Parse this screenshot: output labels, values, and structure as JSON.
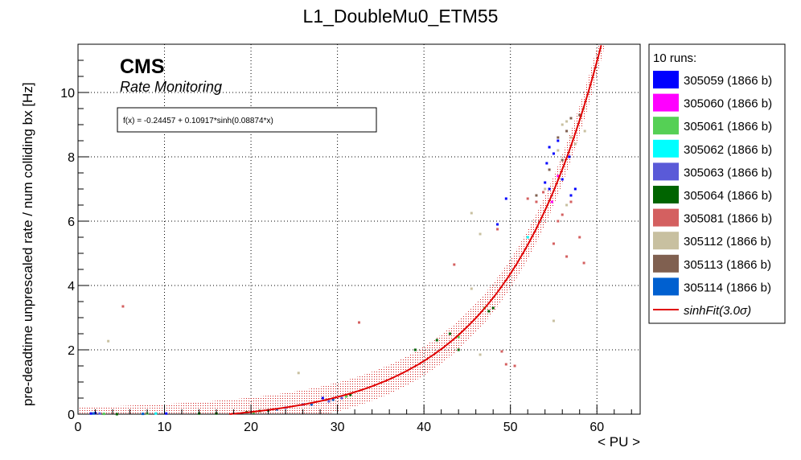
{
  "chart_data": {
    "type": "scatter",
    "title": "L1_DoubleMu0_ETM55",
    "xlabel": "< PU >",
    "ylabel": "pre-deadtime unprescaled rate / num colliding bx [Hz]",
    "xlim": [
      0,
      65
    ],
    "ylim": [
      0,
      11.5
    ],
    "x_ticks": [
      0,
      10,
      20,
      30,
      40,
      50,
      60
    ],
    "y_ticks": [
      0,
      2,
      4,
      6,
      8,
      10
    ],
    "x_tick_labels": [
      "0",
      "10",
      "20",
      "30",
      "40",
      "50",
      "60"
    ],
    "y_tick_labels": [
      "0",
      "2",
      "4",
      "6",
      "8",
      "10"
    ],
    "grid": true,
    "brand": "CMS",
    "subbrand": "Rate Monitoring",
    "fit_formula": "f(x) = -0.24457 + 0.10917*sinh(0.08874*x)",
    "fit": {
      "a": -0.24457,
      "b": 0.10917,
      "c": 0.08874,
      "band": 0.45,
      "color": "#e00000"
    },
    "legend_header": "10 runs:",
    "legend_position": "right",
    "series": [
      {
        "name": "305059 (1866 b)",
        "color": "#0000ff",
        "points": [
          [
            1.5,
            0.02
          ],
          [
            2,
            0.03
          ],
          [
            10.2,
            0.02
          ],
          [
            28.3,
            0.5
          ],
          [
            49.5,
            6.7
          ],
          [
            48.5,
            5.9
          ],
          [
            54,
            7.2
          ],
          [
            54.5,
            7.0
          ],
          [
            54.2,
            7.8
          ],
          [
            55,
            8.1
          ],
          [
            55.5,
            8.5
          ],
          [
            54.5,
            8.3
          ],
          [
            56,
            7.3
          ],
          [
            57,
            6.8
          ],
          [
            57.5,
            7.0
          ],
          [
            56.8,
            8.0
          ]
        ]
      },
      {
        "name": "305060 (1866 b)",
        "color": "#ff00ff",
        "points": [
          [
            54.8,
            6.6
          ],
          [
            55.5,
            7.4
          ]
        ]
      },
      {
        "name": "305061 (1866 b)",
        "color": "#55d055",
        "points": [
          [
            3,
            0.01
          ],
          [
            8,
            0.02
          ],
          [
            20.3,
            0.05
          ],
          [
            31,
            0.55
          ],
          [
            44,
            2.4
          ],
          [
            47,
            3.3
          ]
        ]
      },
      {
        "name": "305062 (1866 b)",
        "color": "#00ffff",
        "points": [
          [
            9,
            0.02
          ],
          [
            52,
            5.5
          ]
        ]
      },
      {
        "name": "305063 (1866 b)",
        "color": "#5a5ad8",
        "points": [
          [
            2.5,
            0.02
          ],
          [
            24,
            0.2
          ],
          [
            26,
            0.3
          ],
          [
            29,
            0.4
          ],
          [
            30.5,
            0.5
          ]
        ]
      },
      {
        "name": "305064 (1866 b)",
        "color": "#006400",
        "points": [
          [
            4.5,
            0.0
          ],
          [
            14,
            0.02
          ],
          [
            16,
            0.02
          ],
          [
            19.5,
            0.06
          ],
          [
            21,
            0.1
          ],
          [
            22,
            0.12
          ],
          [
            31.5,
            0.6
          ],
          [
            39,
            2.0
          ],
          [
            41.5,
            2.3
          ],
          [
            43,
            2.5
          ],
          [
            44,
            2.0
          ],
          [
            47.5,
            3.2
          ],
          [
            48,
            3.3
          ]
        ]
      },
      {
        "name": "305081 (1866 b)",
        "color": "#d46060",
        "points": [
          [
            5.2,
            3.35
          ],
          [
            32.5,
            2.85
          ],
          [
            43.5,
            4.65
          ],
          [
            49,
            1.95
          ],
          [
            49.5,
            1.55
          ],
          [
            50.5,
            1.5
          ],
          [
            48.5,
            5.75
          ],
          [
            52,
            6.7
          ],
          [
            53,
            6.6
          ],
          [
            55,
            5.3
          ],
          [
            56.5,
            4.9
          ],
          [
            57,
            6.6
          ],
          [
            58,
            5.5
          ],
          [
            58.5,
            4.7
          ],
          [
            55.5,
            6.0
          ],
          [
            56,
            6.2
          ],
          [
            53.8,
            6.9
          ]
        ]
      },
      {
        "name": "305112 (1866 b)",
        "color": "#c8c0a0",
        "points": [
          [
            3.5,
            2.27
          ],
          [
            25.5,
            1.28
          ],
          [
            45.5,
            6.25
          ],
          [
            46.5,
            5.6
          ],
          [
            45.5,
            3.9
          ],
          [
            46.5,
            1.85
          ],
          [
            55,
            2.9
          ],
          [
            56.5,
            6.5
          ],
          [
            54,
            7.0
          ],
          [
            55.5,
            8.2
          ],
          [
            56,
            9.0
          ],
          [
            56.5,
            9.1
          ],
          [
            57,
            8.6
          ],
          [
            57.5,
            8.4
          ],
          [
            58.5,
            9.5
          ],
          [
            58.6,
            8.8
          ]
        ]
      },
      {
        "name": "305113 (1866 b)",
        "color": "#806050",
        "points": [
          [
            55.5,
            8.6
          ],
          [
            56.5,
            8.8
          ],
          [
            57,
            9.2
          ],
          [
            58,
            9.3
          ],
          [
            54.5,
            7.6
          ],
          [
            53,
            6.8
          ],
          [
            56,
            7.9
          ]
        ]
      },
      {
        "name": "305114 (1866 b)",
        "color": "#0060d0",
        "points": [
          [
            1.8,
            0.02
          ],
          [
            7.5,
            0.01
          ],
          [
            23,
            0.15
          ],
          [
            27,
            0.3
          ],
          [
            29.5,
            0.45
          ]
        ]
      }
    ],
    "fit_legend_label": "sinhFit(3.0σ)"
  }
}
